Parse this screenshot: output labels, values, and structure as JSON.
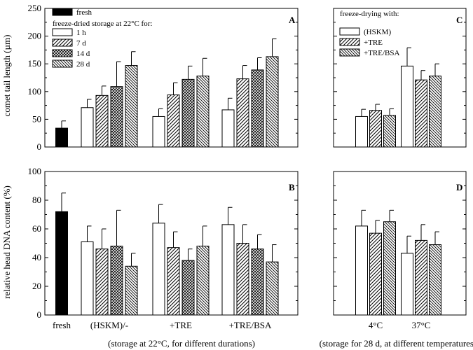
{
  "ylabel_top": "comet tail length (µm)",
  "ylabel_bottom": "relative head DNA content (%)",
  "xlabel_left": "(storage at 22°C, for different durations)",
  "xlabel_right": "(storage for 28 d, at different temperatures)",
  "left_categories": [
    "fresh",
    "(HSKM)/-",
    "+TRE",
    "+TRE/BSA"
  ],
  "right_categories": [
    "4°C",
    "37°C"
  ],
  "legend_left": {
    "fresh": "fresh",
    "header": "freeze-dried storage at 22°C for:",
    "items": [
      "1 h",
      "7 d",
      "14 d",
      "28 d"
    ]
  },
  "legend_right": {
    "header": "freeze-drying with:",
    "items": [
      "(HSKM)",
      "+TRE",
      "+TRE/BSA"
    ]
  },
  "chart_data": [
    {
      "panel": "A",
      "type": "bar",
      "ylabel": "comet tail length (µm)",
      "ylim": [
        0,
        250
      ],
      "yticks": [
        0,
        50,
        100,
        150,
        200,
        250
      ],
      "categories": [
        "fresh",
        "(HSKM)/-",
        "+TRE",
        "+TRE/BSA"
      ],
      "fresh": {
        "value": 34,
        "error": 13
      },
      "series": [
        {
          "name": "1 h",
          "values": [
            null,
            71,
            55,
            67
          ],
          "errors": [
            null,
            15,
            14,
            21
          ]
        },
        {
          "name": "7 d",
          "values": [
            null,
            93,
            94,
            123
          ],
          "errors": [
            null,
            17,
            22,
            24
          ]
        },
        {
          "name": "14 d",
          "values": [
            null,
            109,
            122,
            139
          ],
          "errors": [
            null,
            45,
            24,
            22
          ]
        },
        {
          "name": "28 d",
          "values": [
            null,
            147,
            128,
            163
          ],
          "errors": [
            null,
            25,
            32,
            32
          ]
        }
      ]
    },
    {
      "panel": "B",
      "type": "bar",
      "ylabel": "relative head DNA content (%)",
      "ylim": [
        0,
        100
      ],
      "yticks": [
        0,
        20,
        40,
        60,
        80,
        100
      ],
      "categories": [
        "fresh",
        "(HSKM)/-",
        "+TRE",
        "+TRE/BSA"
      ],
      "fresh": {
        "value": 72,
        "error": 13
      },
      "series": [
        {
          "name": "1 h",
          "values": [
            null,
            51,
            64,
            63
          ],
          "errors": [
            null,
            11,
            13,
            12
          ]
        },
        {
          "name": "7 d",
          "values": [
            null,
            46,
            47,
            50
          ],
          "errors": [
            null,
            14,
            11,
            13
          ]
        },
        {
          "name": "14 d",
          "values": [
            null,
            48,
            38,
            46
          ],
          "errors": [
            null,
            25,
            8,
            10
          ]
        },
        {
          "name": "28 d",
          "values": [
            null,
            34,
            48,
            37
          ],
          "errors": [
            null,
            9,
            14,
            12
          ]
        }
      ]
    },
    {
      "panel": "C",
      "type": "bar",
      "ylabel": "comet tail length (µm)",
      "ylim": [
        0,
        250
      ],
      "yticks": [
        0,
        50,
        100,
        150,
        200,
        250
      ],
      "categories": [
        "4°C",
        "37°C"
      ],
      "series": [
        {
          "name": "(HSKM)",
          "values": [
            55,
            146
          ],
          "errors": [
            13,
            33
          ]
        },
        {
          "name": "+TRE",
          "values": [
            66,
            121
          ],
          "errors": [
            11,
            17
          ]
        },
        {
          "name": "+TRE/BSA",
          "values": [
            57,
            128
          ],
          "errors": [
            12,
            22
          ]
        }
      ]
    },
    {
      "panel": "D",
      "type": "bar",
      "ylabel": "relative head DNA content (%)",
      "ylim": [
        0,
        100
      ],
      "yticks": [
        0,
        20,
        40,
        60,
        80,
        100
      ],
      "categories": [
        "4°C",
        "37°C"
      ],
      "series": [
        {
          "name": "(HSKM)",
          "values": [
            62,
            43
          ],
          "errors": [
            11,
            12
          ]
        },
        {
          "name": "+TRE",
          "values": [
            57,
            52
          ],
          "errors": [
            9,
            11
          ]
        },
        {
          "name": "+TRE/BSA",
          "values": [
            65,
            49
          ],
          "errors": [
            8,
            9
          ]
        }
      ]
    }
  ]
}
